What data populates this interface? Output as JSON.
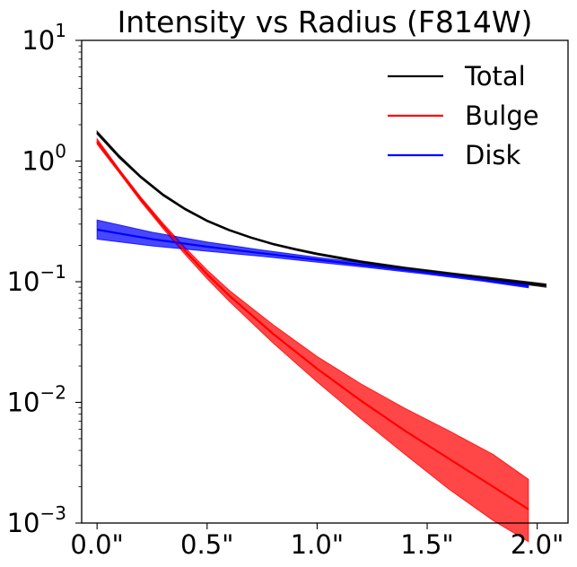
{
  "chart_data": {
    "type": "line",
    "title": "Intensity vs Radius (F814W)",
    "xlabel": "",
    "ylabel": "",
    "xlim": [
      -0.07,
      2.14
    ],
    "ylim": [
      0.001,
      10
    ],
    "yscale": "log",
    "grid": false,
    "legend_position": "top-right",
    "x_ticks": [
      {
        "value": 0.0,
        "label": "0.0\""
      },
      {
        "value": 0.5,
        "label": "0.5\""
      },
      {
        "value": 1.0,
        "label": "1.0\""
      },
      {
        "value": 1.5,
        "label": "1.5\""
      },
      {
        "value": 2.0,
        "label": "2.0\""
      }
    ],
    "y_ticks": [
      {
        "value": 0.001,
        "base": "10",
        "exp": "−3"
      },
      {
        "value": 0.01,
        "base": "10",
        "exp": "−2"
      },
      {
        "value": 0.1,
        "base": "10",
        "exp": "−1"
      },
      {
        "value": 1,
        "base": "10",
        "exp": "0"
      },
      {
        "value": 10,
        "base": "10",
        "exp": "1"
      }
    ],
    "series": [
      {
        "name": "Total",
        "color": "#000000",
        "x": [
          0.0,
          0.1,
          0.2,
          0.3,
          0.4,
          0.5,
          0.6,
          0.7,
          0.8,
          0.9,
          1.0,
          1.2,
          1.4,
          1.6,
          1.8,
          2.0,
          2.04
        ],
        "y": [
          1.72,
          1.09,
          0.735,
          0.525,
          0.4,
          0.32,
          0.268,
          0.232,
          0.205,
          0.186,
          0.17,
          0.146,
          0.129,
          0.116,
          0.105,
          0.095,
          0.093
        ],
        "y_lower": [
          1.67,
          1.06,
          0.72,
          0.515,
          0.393,
          0.315,
          0.264,
          0.229,
          0.202,
          0.183,
          0.167,
          0.143,
          0.126,
          0.113,
          0.102,
          0.092,
          0.09
        ],
        "y_upper": [
          1.77,
          1.12,
          0.75,
          0.535,
          0.407,
          0.325,
          0.272,
          0.235,
          0.208,
          0.189,
          0.173,
          0.149,
          0.132,
          0.119,
          0.108,
          0.098,
          0.096
        ]
      },
      {
        "name": "Bulge",
        "color": "#ff0000",
        "x": [
          0.0,
          0.1,
          0.2,
          0.3,
          0.4,
          0.5,
          0.6,
          0.8,
          1.0,
          1.2,
          1.4,
          1.6,
          1.8,
          1.96
        ],
        "y": [
          1.45,
          0.83,
          0.48,
          0.29,
          0.18,
          0.115,
          0.077,
          0.037,
          0.019,
          0.0103,
          0.0058,
          0.0034,
          0.002,
          0.0013
        ],
        "y_lower": [
          1.38,
          0.8,
          0.46,
          0.275,
          0.168,
          0.106,
          0.069,
          0.031,
          0.0148,
          0.0073,
          0.0037,
          0.0019,
          0.00105,
          0.0007
        ],
        "y_upper": [
          1.53,
          0.86,
          0.5,
          0.305,
          0.192,
          0.125,
          0.085,
          0.044,
          0.024,
          0.0142,
          0.0089,
          0.0058,
          0.0037,
          0.0023
        ]
      },
      {
        "name": "Disk",
        "color": "#0000ff",
        "x": [
          0.0,
          0.25,
          0.5,
          0.75,
          1.0,
          1.25,
          1.5,
          1.75,
          1.96
        ],
        "y": [
          0.27,
          0.225,
          0.195,
          0.172,
          0.152,
          0.135,
          0.119,
          0.104,
          0.092
        ],
        "y_lower": [
          0.225,
          0.198,
          0.179,
          0.162,
          0.145,
          0.13,
          0.115,
          0.101,
          0.089
        ],
        "y_upper": [
          0.325,
          0.257,
          0.213,
          0.183,
          0.159,
          0.14,
          0.123,
          0.107,
          0.095
        ]
      }
    ]
  }
}
